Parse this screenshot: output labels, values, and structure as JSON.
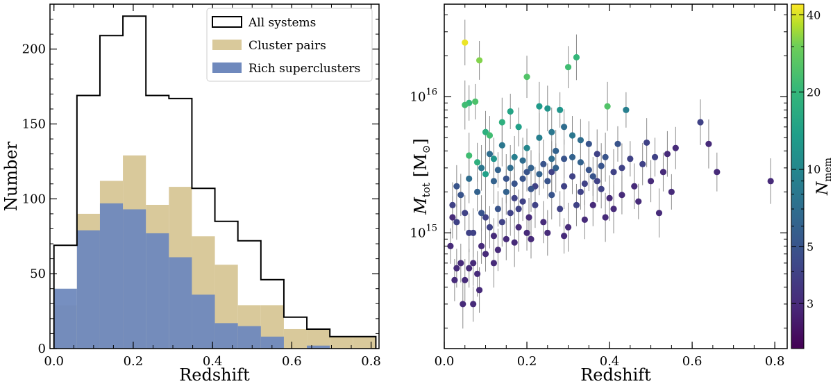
{
  "chart_data": [
    {
      "type": "histogram",
      "xlabel": "Redshift",
      "ylabel": "Number",
      "xlim": [
        -0.01,
        0.82
      ],
      "ylim": [
        0,
        230
      ],
      "xticks": [
        0.0,
        0.2,
        0.4,
        0.6,
        0.8
      ],
      "xtick_labels": [
        "0.0",
        "0.2",
        "0.4",
        "0.6",
        "0.8"
      ],
      "yticks": [
        0,
        50,
        100,
        150,
        200
      ],
      "ytick_labels": [
        "0",
        "50",
        "100",
        "150",
        "200"
      ],
      "bin_edges": [
        0.0,
        0.058,
        0.116,
        0.174,
        0.232,
        0.29,
        0.348,
        0.406,
        0.464,
        0.522,
        0.58,
        0.638,
        0.696,
        0.754,
        0.812
      ],
      "legend_position": "top-right",
      "series": [
        {
          "name": "All systems",
          "style": "step",
          "color": "#000000",
          "values": [
            69,
            169,
            209,
            222,
            169,
            167,
            107,
            85,
            72,
            46,
            21,
            13,
            8,
            8
          ]
        },
        {
          "name": "Cluster pairs",
          "style": "filled",
          "color": "#d9c99b",
          "values": [
            29,
            90,
            112,
            129,
            96,
            108,
            75,
            56,
            29,
            29,
            13,
            13,
            8,
            8
          ]
        },
        {
          "name": "Rich superclusters",
          "style": "filled",
          "color": "#6f89bd",
          "values": [
            40,
            79,
            97,
            93,
            77,
            61,
            36,
            17,
            15,
            8,
            0,
            2,
            0,
            0
          ]
        }
      ]
    },
    {
      "type": "scatter",
      "xlabel": "Redshift",
      "ylabel_main": "M",
      "ylabel_sub": "tot",
      "ylabel_unit_open": "[M",
      "ylabel_unit_sub": "⊙",
      "ylabel_unit_close": "]",
      "xlim": [
        0.0,
        0.83
      ],
      "ylim_log10": [
        14.15,
        16.68
      ],
      "xticks": [
        0.0,
        0.2,
        0.4,
        0.6,
        0.8
      ],
      "xtick_labels": [
        "0.0",
        "0.2",
        "0.4",
        "0.6",
        "0.8"
      ],
      "yticks_log10": [
        15,
        16
      ],
      "ytick_labels": [
        {
          "base": "10",
          "exp": "15"
        },
        {
          "base": "10",
          "exp": "16"
        }
      ],
      "colorbar": {
        "label_main": "N",
        "label_sub": "mem",
        "range": [
          2,
          44
        ],
        "ticks": [
          3,
          5,
          10,
          20,
          40
        ],
        "tick_labels": [
          "3",
          "5",
          "10",
          "20",
          "40"
        ]
      },
      "points": [
        [
          0.05,
          25.0,
          42
        ],
        [
          0.085,
          18.5,
          32
        ],
        [
          0.2,
          14.0,
          25
        ],
        [
          0.3,
          16.5,
          22
        ],
        [
          0.32,
          19.5,
          20
        ],
        [
          0.05,
          8.7,
          22
        ],
        [
          0.06,
          9.0,
          20
        ],
        [
          0.075,
          9.2,
          24
        ],
        [
          0.1,
          5.5,
          18
        ],
        [
          0.11,
          5.2,
          22
        ],
        [
          0.14,
          6.5,
          18
        ],
        [
          0.16,
          7.8,
          15
        ],
        [
          0.18,
          6.0,
          14
        ],
        [
          0.23,
          8.5,
          13
        ],
        [
          0.25,
          8.2,
          12
        ],
        [
          0.28,
          8.0,
          12
        ],
        [
          0.395,
          8.5,
          25
        ],
        [
          0.44,
          8.0,
          9
        ],
        [
          0.06,
          3.7,
          22
        ],
        [
          0.08,
          3.3,
          18
        ],
        [
          0.1,
          2.7,
          14
        ],
        [
          0.12,
          3.5,
          12
        ],
        [
          0.02,
          1.6,
          4
        ],
        [
          0.015,
          0.8,
          3
        ],
        [
          0.03,
          1.2,
          4
        ],
        [
          0.025,
          0.45,
          3
        ],
        [
          0.045,
          0.3,
          3
        ],
        [
          0.06,
          0.55,
          3
        ],
        [
          0.07,
          0.6,
          3
        ],
        [
          0.09,
          0.8,
          3
        ],
        [
          0.11,
          1.1,
          4
        ],
        [
          0.13,
          1.5,
          5
        ],
        [
          0.15,
          2.0,
          6
        ],
        [
          0.17,
          1.8,
          4
        ],
        [
          0.19,
          2.5,
          5
        ],
        [
          0.21,
          3.0,
          6
        ],
        [
          0.22,
          2.2,
          4
        ],
        [
          0.24,
          3.2,
          5
        ],
        [
          0.26,
          2.8,
          4
        ],
        [
          0.27,
          4.0,
          6
        ],
        [
          0.29,
          3.5,
          5
        ],
        [
          0.31,
          2.6,
          4
        ],
        [
          0.33,
          3.3,
          6
        ],
        [
          0.34,
          2.3,
          4
        ],
        [
          0.35,
          4.5,
          5
        ],
        [
          0.36,
          1.6,
          3
        ],
        [
          0.37,
          3.8,
          4
        ],
        [
          0.38,
          2.1,
          4
        ],
        [
          0.39,
          1.3,
          3
        ],
        [
          0.41,
          2.8,
          4
        ],
        [
          0.42,
          4.5,
          5
        ],
        [
          0.43,
          1.9,
          3
        ],
        [
          0.45,
          3.5,
          4
        ],
        [
          0.46,
          2.2,
          3
        ],
        [
          0.47,
          1.7,
          3
        ],
        [
          0.48,
          3.2,
          4
        ],
        [
          0.49,
          4.6,
          4
        ],
        [
          0.5,
          2.4,
          3
        ],
        [
          0.51,
          3.6,
          4
        ],
        [
          0.52,
          1.4,
          3
        ],
        [
          0.53,
          2.8,
          3
        ],
        [
          0.54,
          3.8,
          3
        ],
        [
          0.55,
          2.0,
          3
        ],
        [
          0.56,
          4.2,
          3
        ],
        [
          0.62,
          6.5,
          4
        ],
        [
          0.64,
          4.5,
          3
        ],
        [
          0.66,
          2.8,
          3
        ],
        [
          0.79,
          2.4,
          3
        ],
        [
          0.03,
          2.2,
          5
        ],
        [
          0.05,
          1.4,
          4
        ],
        [
          0.08,
          2.0,
          6
        ],
        [
          0.1,
          1.3,
          4
        ],
        [
          0.12,
          2.4,
          6
        ],
        [
          0.14,
          1.2,
          4
        ],
        [
          0.16,
          3.0,
          7
        ],
        [
          0.18,
          1.5,
          4
        ],
        [
          0.2,
          1.0,
          3
        ],
        [
          0.22,
          1.6,
          4
        ],
        [
          0.24,
          1.2,
          3
        ],
        [
          0.26,
          1.9,
          5
        ],
        [
          0.28,
          1.5,
          4
        ],
        [
          0.3,
          1.1,
          3
        ],
        [
          0.32,
          1.6,
          4
        ],
        [
          0.34,
          1.25,
          3
        ],
        [
          0.36,
          2.6,
          5
        ],
        [
          0.38,
          3.1,
          5
        ],
        [
          0.4,
          1.8,
          3
        ],
        [
          0.14,
          4.4,
          8
        ],
        [
          0.17,
          3.6,
          9
        ],
        [
          0.2,
          4.2,
          10
        ],
        [
          0.23,
          5.0,
          9
        ],
        [
          0.26,
          5.5,
          8
        ],
        [
          0.29,
          6.0,
          7
        ],
        [
          0.31,
          5.2,
          8
        ],
        [
          0.33,
          4.8,
          7
        ],
        [
          0.07,
          1.0,
          4
        ],
        [
          0.09,
          1.4,
          5
        ],
        [
          0.12,
          0.95,
          3
        ],
        [
          0.15,
          0.9,
          3
        ],
        [
          0.18,
          1.1,
          3
        ],
        [
          0.04,
          0.6,
          3
        ],
        [
          0.06,
          1.0,
          4
        ],
        [
          0.08,
          0.5,
          3
        ],
        [
          0.1,
          0.7,
          3
        ],
        [
          0.13,
          0.75,
          3
        ],
        [
          0.17,
          0.85,
          3
        ],
        [
          0.21,
          0.9,
          3
        ],
        [
          0.25,
          1.0,
          3
        ],
        [
          0.29,
          0.95,
          3
        ],
        [
          0.02,
          1.3,
          3
        ],
        [
          0.04,
          1.9,
          5
        ],
        [
          0.06,
          2.5,
          7
        ],
        [
          0.09,
          3.0,
          8
        ],
        [
          0.11,
          3.8,
          7
        ],
        [
          0.13,
          2.9,
          6
        ],
        [
          0.15,
          2.5,
          5
        ],
        [
          0.17,
          2.3,
          5
        ],
        [
          0.19,
          3.4,
          7
        ],
        [
          0.21,
          2.1,
          5
        ],
        [
          0.23,
          2.7,
          6
        ],
        [
          0.25,
          2.4,
          5
        ],
        [
          0.27,
          3.0,
          6
        ],
        [
          0.29,
          2.2,
          4
        ],
        [
          0.31,
          3.6,
          6
        ],
        [
          0.33,
          2.0,
          4
        ],
        [
          0.35,
          2.9,
          5
        ],
        [
          0.37,
          2.4,
          4
        ],
        [
          0.39,
          3.6,
          5
        ],
        [
          0.41,
          1.5,
          3
        ],
        [
          0.43,
          3.0,
          4
        ],
        [
          0.03,
          0.55,
          3
        ],
        [
          0.085,
          0.38,
          3
        ],
        [
          0.07,
          0.3,
          3
        ],
        [
          0.05,
          0.45,
          3
        ],
        [
          0.12,
          0.6,
          3
        ],
        [
          0.19,
          1.7,
          4
        ],
        [
          0.2,
          2.8,
          5
        ],
        [
          0.205,
          1.3,
          3
        ],
        [
          0.16,
          1.4,
          4
        ],
        [
          0.26,
          3.5,
          7
        ]
      ]
    }
  ]
}
